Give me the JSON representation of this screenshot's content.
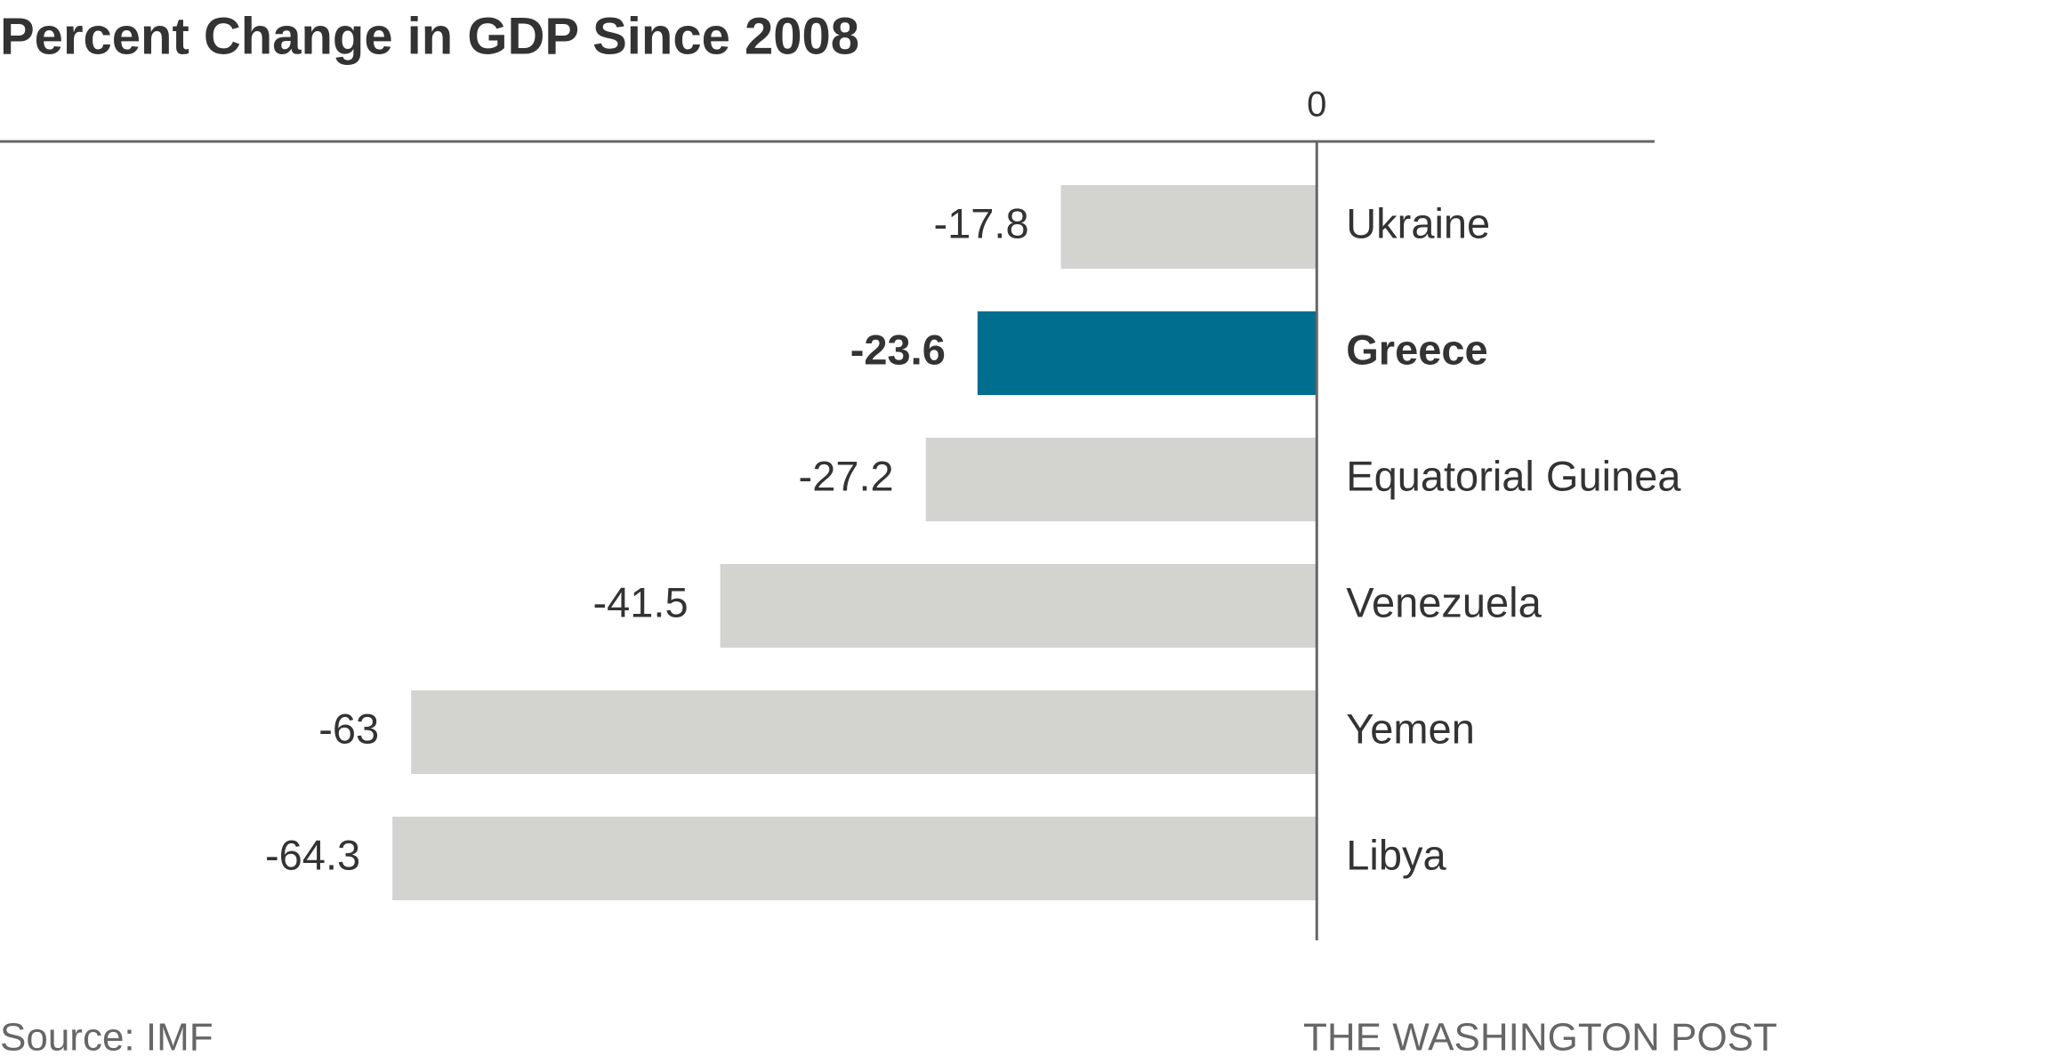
{
  "chart_data": {
    "type": "hbar",
    "title": "Percent Change in GDP Since 2008",
    "categories": [
      "Ukraine",
      "Greece",
      "Equatorial Guinea",
      "Venezuela",
      "Yemen",
      "Libya"
    ],
    "values": [
      -17.8,
      -23.6,
      -27.2,
      -41.5,
      -63,
      -64.3
    ],
    "colors": [
      "#d3d3cf",
      "#006e8f",
      "#d3d3cf",
      "#d3d3cf",
      "#d3d3cf",
      "#d3d3cf"
    ],
    "highlight_color": "#006e8f",
    "xlim": [
      -91.6,
      23.5
    ],
    "xticks": [
      0
    ],
    "source": "Source: IMF",
    "credit": "THE WASHINGTON POST"
  }
}
